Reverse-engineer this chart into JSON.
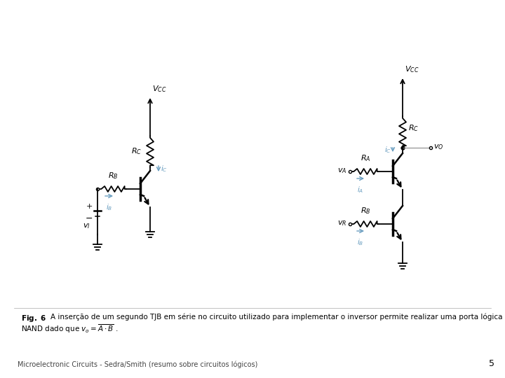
{
  "bg_color": "#ffffff",
  "footer": "Microelectronic Circuits - Sedra/Smith (resumo sobre circuitos lógicos)",
  "page_number": "5",
  "line_color": "#000000",
  "blue_color": "#6a9ec0",
  "caption_line1": "Fig. 6  A inserção de um segundo TJB em série no circuito utilizado para implementar o inversor permite realizar uma porta lógica",
  "caption_line2": "NAND dado que $v_o = \\overline{A \\cdot B}$ .",
  "lw": 1.3
}
